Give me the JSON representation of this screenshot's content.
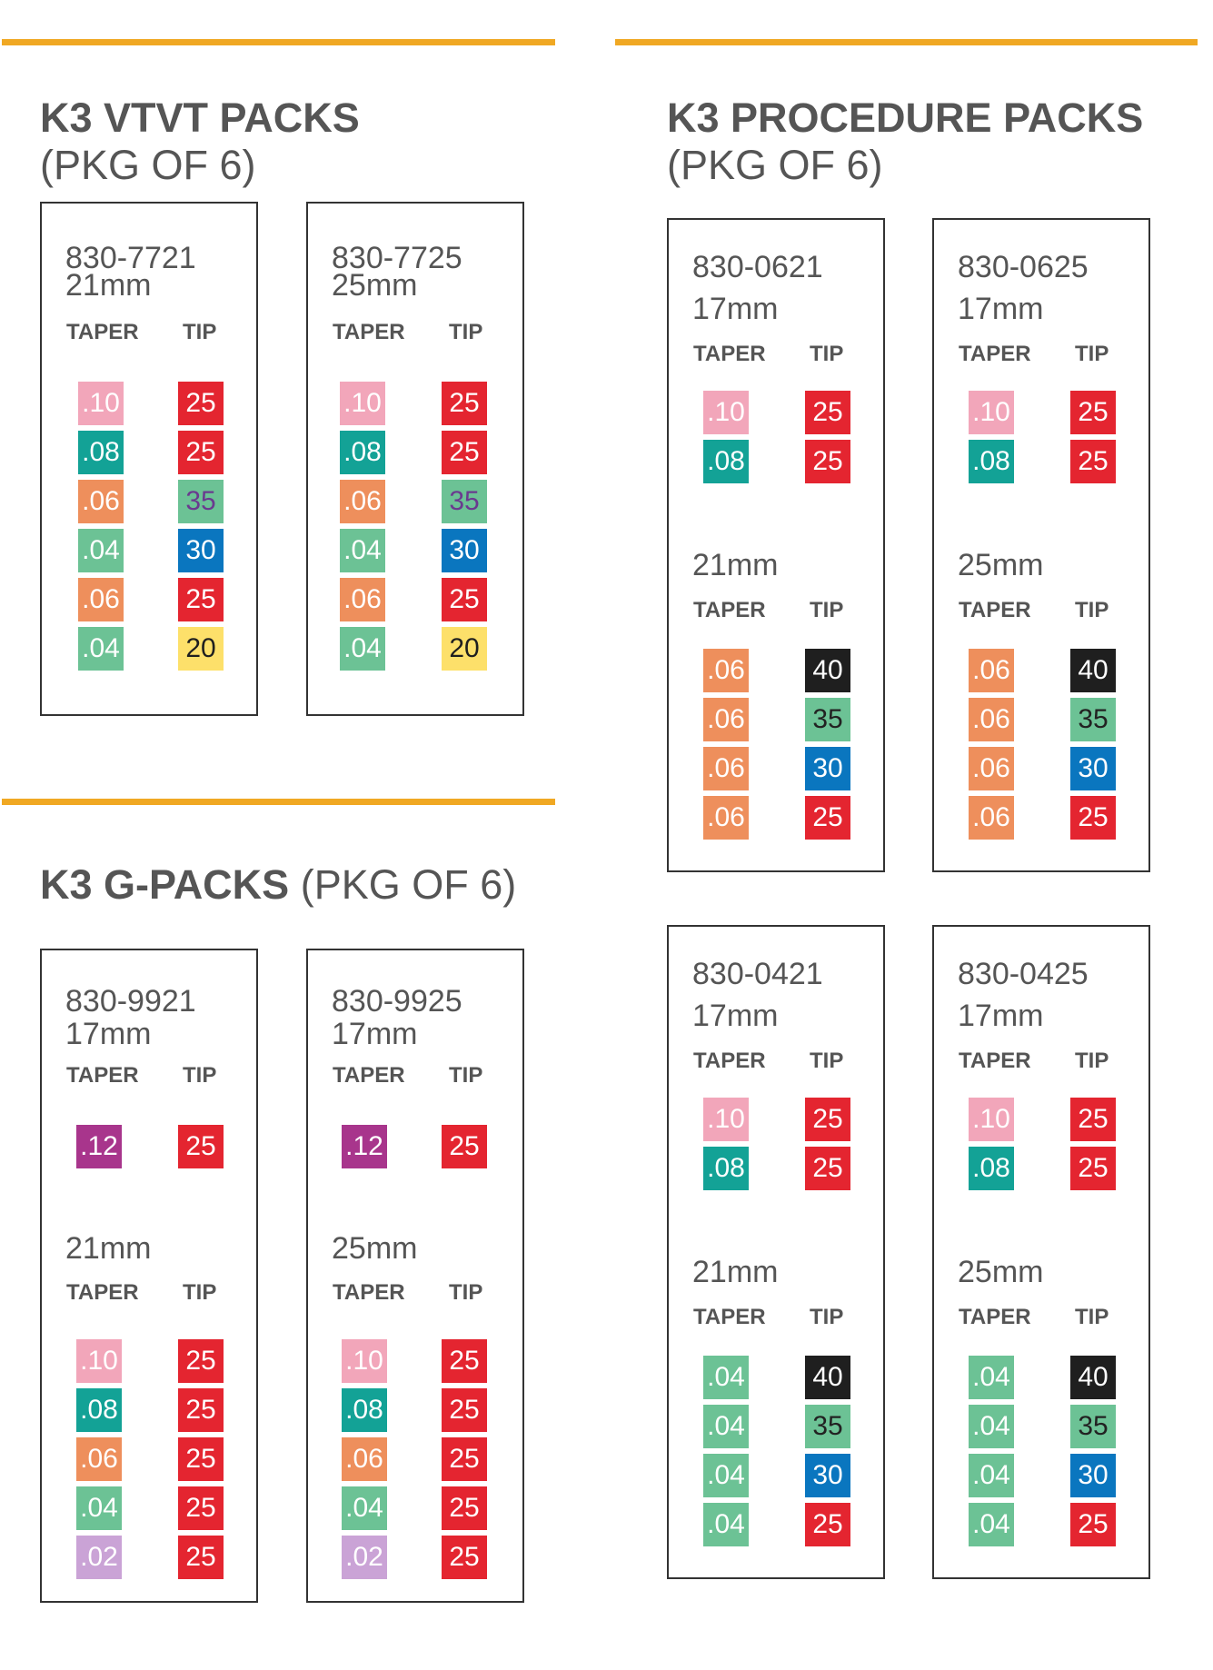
{
  "colors": {
    "rule": "#f0a823",
    "swatch": {
      ".10": "#f2a6ba",
      ".08": "#13a296",
      ".06": "#ee8f5c",
      ".04": "#6cc295",
      ".02": "#caa3d6",
      ".12": "#a8358c",
      "t25": "#e42530",
      "t35": "#6cc295",
      "t30": "#0a76bf",
      "t20": "#fde06a",
      "t40": "#1f1f1f"
    }
  },
  "sections": [
    {
      "id": "vtvt",
      "title_bold": "K3 VTVT PACKS",
      "title_rest": "(PKG OF 6)",
      "cards": [
        {
          "code": "830-7721",
          "groups": [
            {
              "length": "21mm",
              "taper_label": "TAPER",
              "tip_label": "TIP",
              "rows": [
                {
                  "taper": ".10",
                  "tip": "25"
                },
                {
                  "taper": ".08",
                  "tip": "25"
                },
                {
                  "taper": ".06",
                  "tip": "35"
                },
                {
                  "taper": ".04",
                  "tip": "30"
                },
                {
                  "taper": ".06",
                  "tip": "25"
                },
                {
                  "taper": ".04",
                  "tip": "20"
                }
              ]
            }
          ]
        },
        {
          "code": "830-7725",
          "groups": [
            {
              "length": "25mm",
              "taper_label": "TAPER",
              "tip_label": "TIP",
              "rows": [
                {
                  "taper": ".10",
                  "tip": "25"
                },
                {
                  "taper": ".08",
                  "tip": "25"
                },
                {
                  "taper": ".06",
                  "tip": "35"
                },
                {
                  "taper": ".04",
                  "tip": "30"
                },
                {
                  "taper": ".06",
                  "tip": "25"
                },
                {
                  "taper": ".04",
                  "tip": "20"
                }
              ]
            }
          ]
        }
      ]
    },
    {
      "id": "gpacks",
      "title_bold": "K3 G-PACKS",
      "title_rest": " (PKG OF 6)",
      "cards": [
        {
          "code": "830-9921",
          "groups": [
            {
              "length": "17mm",
              "taper_label": "TAPER",
              "tip_label": "TIP",
              "rows": [
                {
                  "taper": ".12",
                  "tip": "25"
                }
              ]
            },
            {
              "length": "21mm",
              "taper_label": "TAPER",
              "tip_label": "TIP",
              "rows": [
                {
                  "taper": ".10",
                  "tip": "25"
                },
                {
                  "taper": ".08",
                  "tip": "25"
                },
                {
                  "taper": ".06",
                  "tip": "25"
                },
                {
                  "taper": ".04",
                  "tip": "25"
                },
                {
                  "taper": ".02",
                  "tip": "25"
                }
              ]
            }
          ]
        },
        {
          "code": "830-9925",
          "groups": [
            {
              "length": "17mm",
              "taper_label": "TAPER",
              "tip_label": "TIP",
              "rows": [
                {
                  "taper": ".12",
                  "tip": "25"
                }
              ]
            },
            {
              "length": "25mm",
              "taper_label": "TAPER",
              "tip_label": "TIP",
              "rows": [
                {
                  "taper": ".10",
                  "tip": "25"
                },
                {
                  "taper": ".08",
                  "tip": "25"
                },
                {
                  "taper": ".06",
                  "tip": "25"
                },
                {
                  "taper": ".04",
                  "tip": "25"
                },
                {
                  "taper": ".02",
                  "tip": "25"
                }
              ]
            }
          ]
        }
      ]
    },
    {
      "id": "procedure",
      "title_bold": "K3 PROCEDURE PACKS",
      "title_rest": "(PKG OF 6)",
      "cards": [
        {
          "code": "830-0621",
          "groups": [
            {
              "length": "17mm",
              "taper_label": "TAPER",
              "tip_label": "TIP",
              "rows": [
                {
                  "taper": ".10",
                  "tip": "25"
                },
                {
                  "taper": ".08",
                  "tip": "25"
                }
              ]
            },
            {
              "length": "21mm",
              "taper_label": "TAPER",
              "tip_label": "TIP",
              "rows": [
                {
                  "taper": ".06",
                  "tip": "40"
                },
                {
                  "taper": ".06",
                  "tip": "35"
                },
                {
                  "taper": ".06",
                  "tip": "30"
                },
                {
                  "taper": ".06",
                  "tip": "25"
                }
              ]
            }
          ]
        },
        {
          "code": "830-0625",
          "groups": [
            {
              "length": "17mm",
              "taper_label": "TAPER",
              "tip_label": "TIP",
              "rows": [
                {
                  "taper": ".10",
                  "tip": "25"
                },
                {
                  "taper": ".08",
                  "tip": "25"
                }
              ]
            },
            {
              "length": "25mm",
              "taper_label": "TAPER",
              "tip_label": "TIP",
              "rows": [
                {
                  "taper": ".06",
                  "tip": "40"
                },
                {
                  "taper": ".06",
                  "tip": "35"
                },
                {
                  "taper": ".06",
                  "tip": "30"
                },
                {
                  "taper": ".06",
                  "tip": "25"
                }
              ]
            }
          ]
        },
        {
          "code": "830-0421",
          "groups": [
            {
              "length": "17mm",
              "taper_label": "TAPER",
              "tip_label": "TIP",
              "rows": [
                {
                  "taper": ".10",
                  "tip": "25"
                },
                {
                  "taper": ".08",
                  "tip": "25"
                }
              ]
            },
            {
              "length": "21mm",
              "taper_label": "TAPER",
              "tip_label": "TIP",
              "rows": [
                {
                  "taper": ".04",
                  "tip": "40"
                },
                {
                  "taper": ".04",
                  "tip": "35"
                },
                {
                  "taper": ".04",
                  "tip": "30"
                },
                {
                  "taper": ".04",
                  "tip": "25"
                }
              ]
            }
          ]
        },
        {
          "code": "830-0425",
          "groups": [
            {
              "length": "17mm",
              "taper_label": "TAPER",
              "tip_label": "TIP",
              "rows": [
                {
                  "taper": ".10",
                  "tip": "25"
                },
                {
                  "taper": ".08",
                  "tip": "25"
                }
              ]
            },
            {
              "length": "25mm",
              "taper_label": "TAPER",
              "tip_label": "TIP",
              "rows": [
                {
                  "taper": ".04",
                  "tip": "40"
                },
                {
                  "taper": ".04",
                  "tip": "35"
                },
                {
                  "taper": ".04",
                  "tip": "30"
                },
                {
                  "taper": ".04",
                  "tip": "25"
                }
              ]
            }
          ]
        }
      ]
    }
  ]
}
